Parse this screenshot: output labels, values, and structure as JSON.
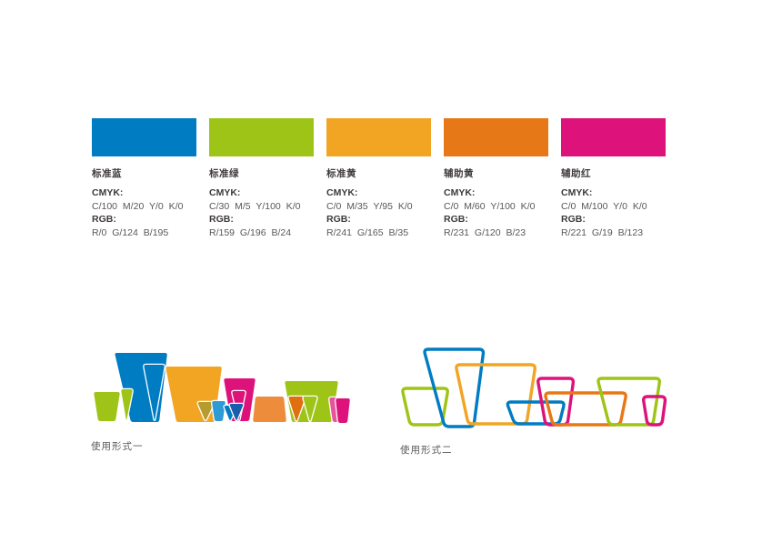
{
  "palette": {
    "cmyk_label": "CMYK:",
    "rgb_label": "RGB:",
    "swatches": [
      {
        "name": "标准蓝",
        "hex": "#007CC3",
        "cmyk": "C/100 M/20 Y/0 K/0",
        "rgb": "R/0 G/124 B/195"
      },
      {
        "name": "标准绿",
        "hex": "#9FC418",
        "cmyk": "C/30 M/5 Y/100 K/0",
        "rgb": "R/159 G/196 B/24"
      },
      {
        "name": "标准黄",
        "hex": "#F1A523",
        "cmyk": "C/0 M/35 Y/95 K/0",
        "rgb": "R/241 G/165 B/35"
      },
      {
        "name": "辅助黄",
        "hex": "#E77817",
        "cmyk": "C/0 M/60 Y/100 K/0",
        "rgb": "R/231 G/120 B/23"
      },
      {
        "name": "辅助红",
        "hex": "#DD137B",
        "cmyk": "C/0 M/100 Y/0 K/0",
        "rgb": "R/221 G/19 B/123"
      }
    ]
  },
  "artwork_accent_colors": {
    "olive": "#B89B2F",
    "light_blue": "#2E9BD6",
    "dark_blue": "#1A5DAD",
    "mid_orange": "#ED8C3A",
    "deep_orange": "#E0700F",
    "light_magenta": "#E8539B"
  },
  "usage": {
    "form1_label": "使用形式一",
    "form2_label": "使用形式二"
  }
}
